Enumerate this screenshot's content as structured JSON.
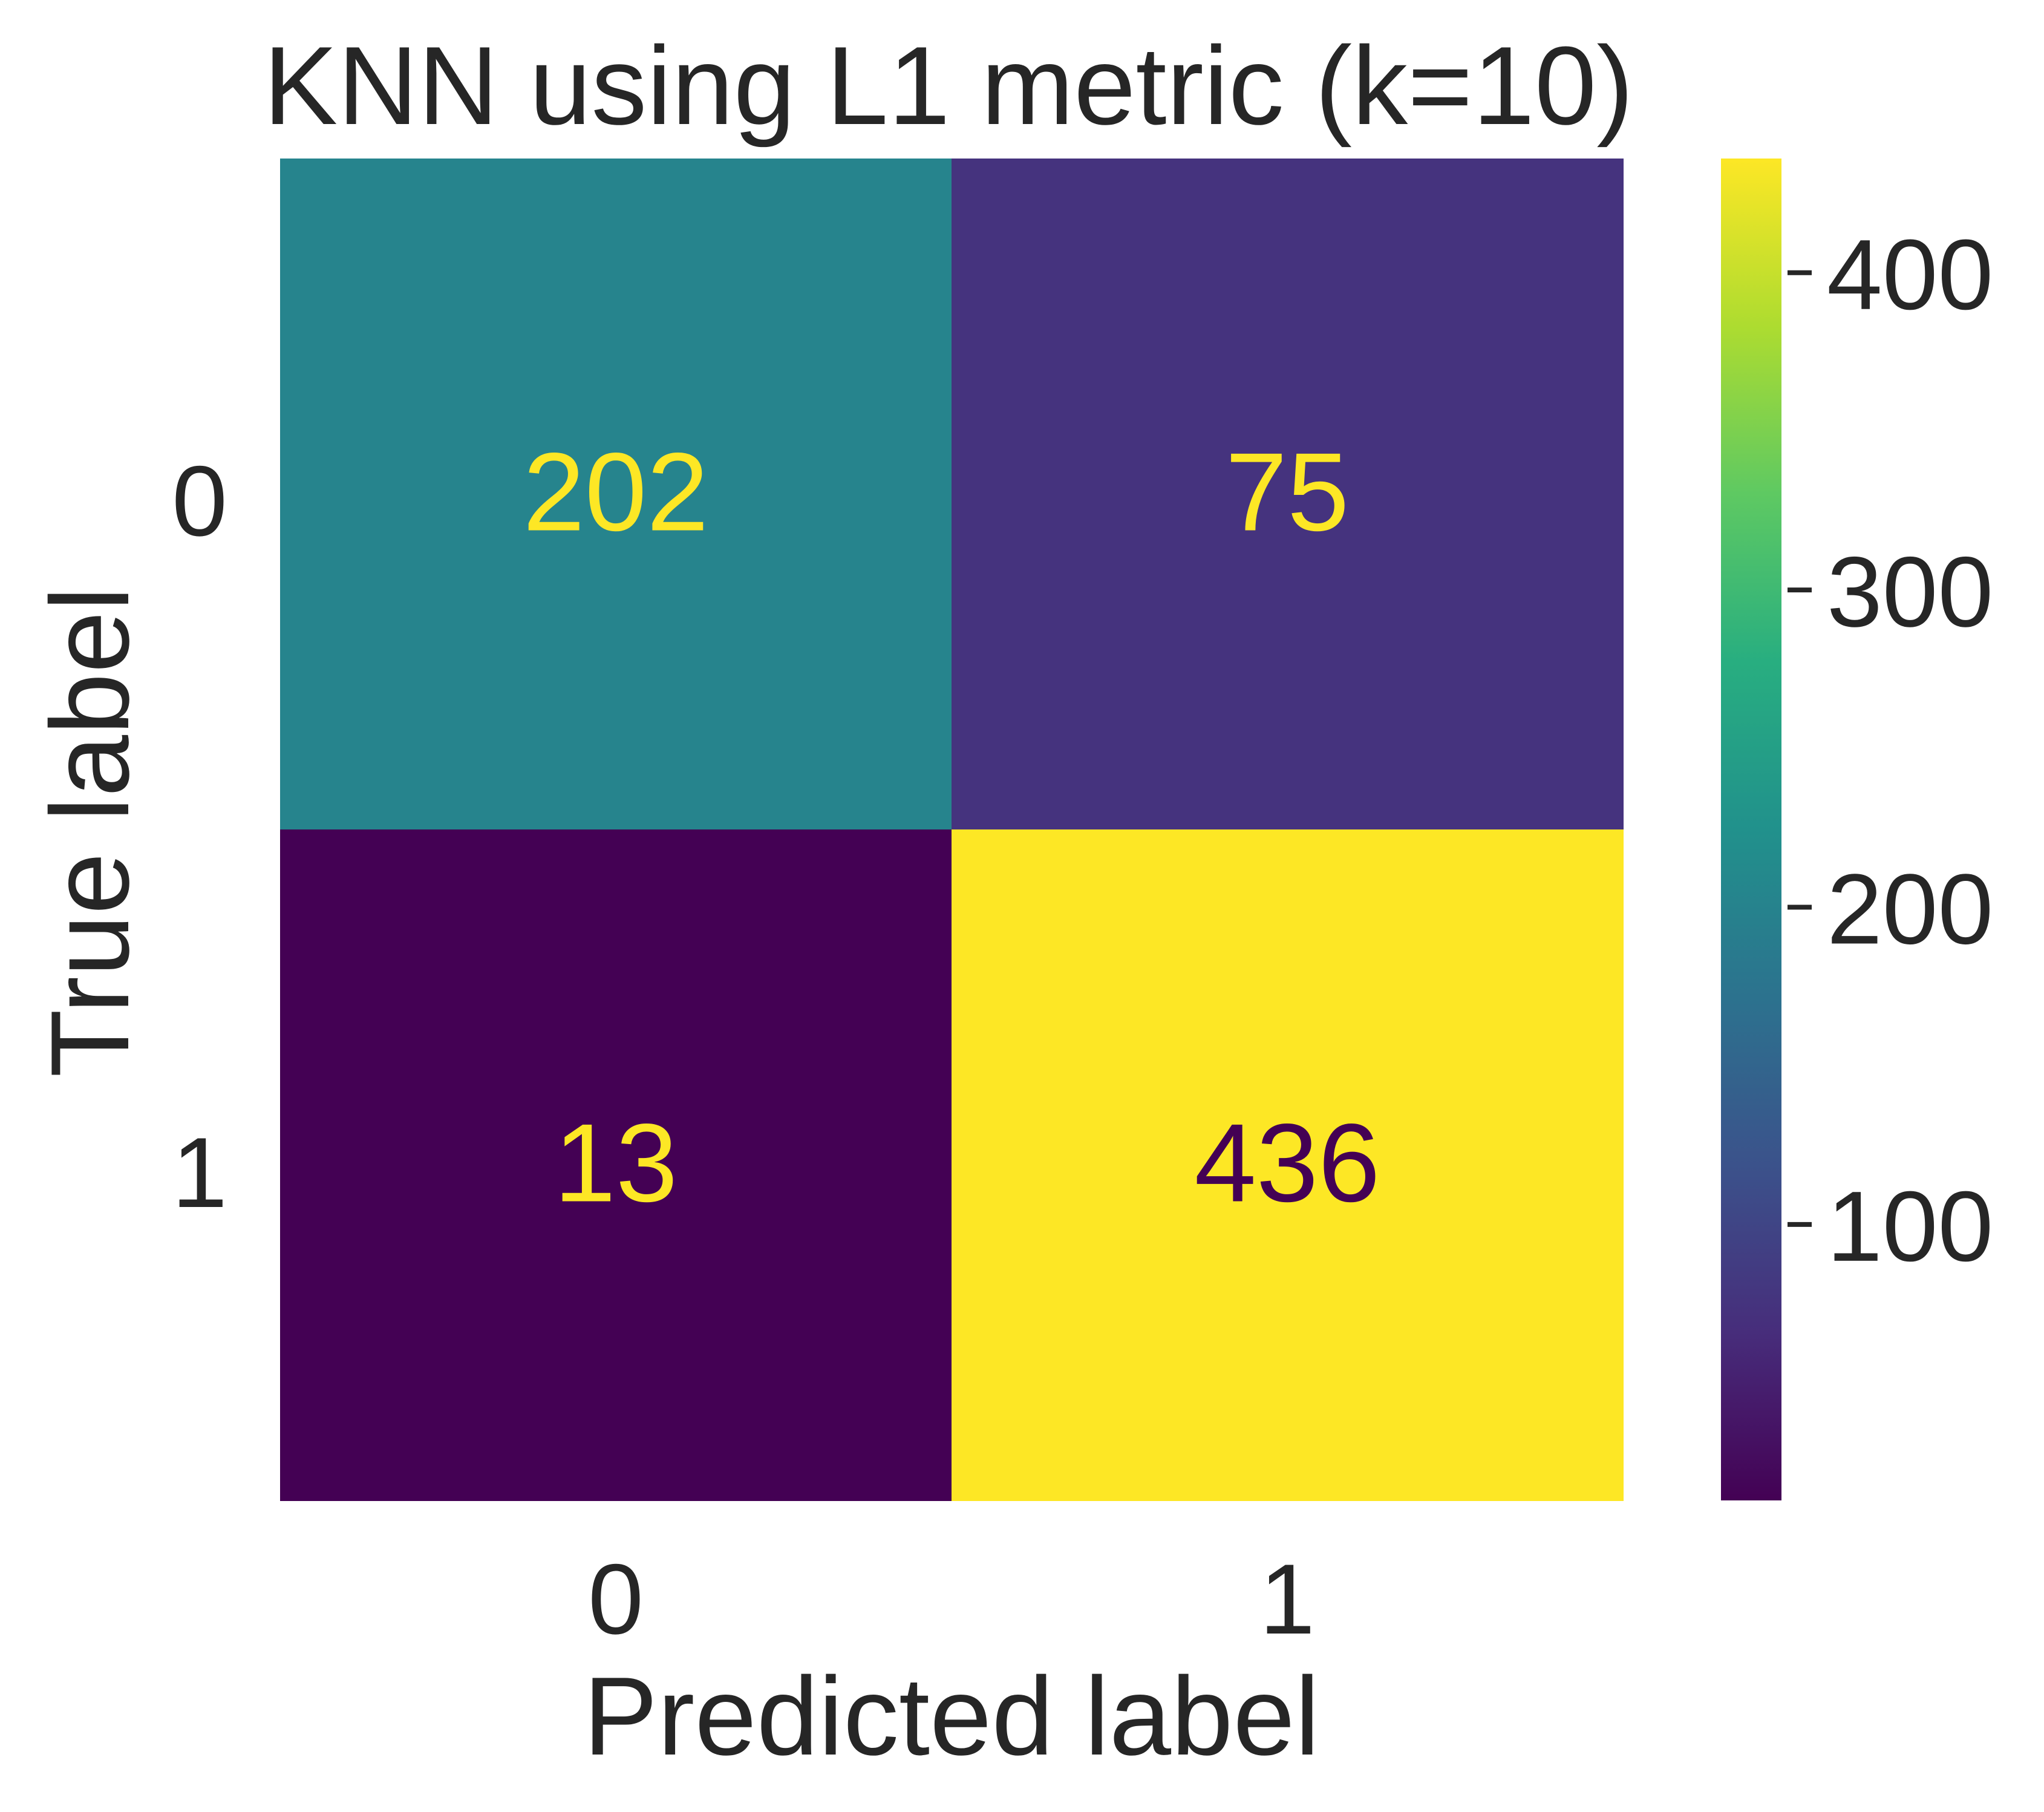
{
  "chart_data": {
    "type": "heatmap",
    "title": "KNN using L1 metric (k=10)",
    "xlabel": "Predicted label",
    "ylabel": "True label",
    "x_categories": [
      "0",
      "1"
    ],
    "y_categories": [
      "0",
      "1"
    ],
    "matrix": [
      [
        202,
        75
      ],
      [
        13,
        436
      ]
    ],
    "colormap": "viridis",
    "colorbar": {
      "range": [
        13,
        436
      ],
      "ticks": [
        100,
        200,
        300,
        400
      ],
      "tick_labels": [
        "100",
        "200",
        "300",
        "400"
      ]
    },
    "annotation_colors": {
      "light": "#fde725",
      "dark": "#440154"
    }
  }
}
